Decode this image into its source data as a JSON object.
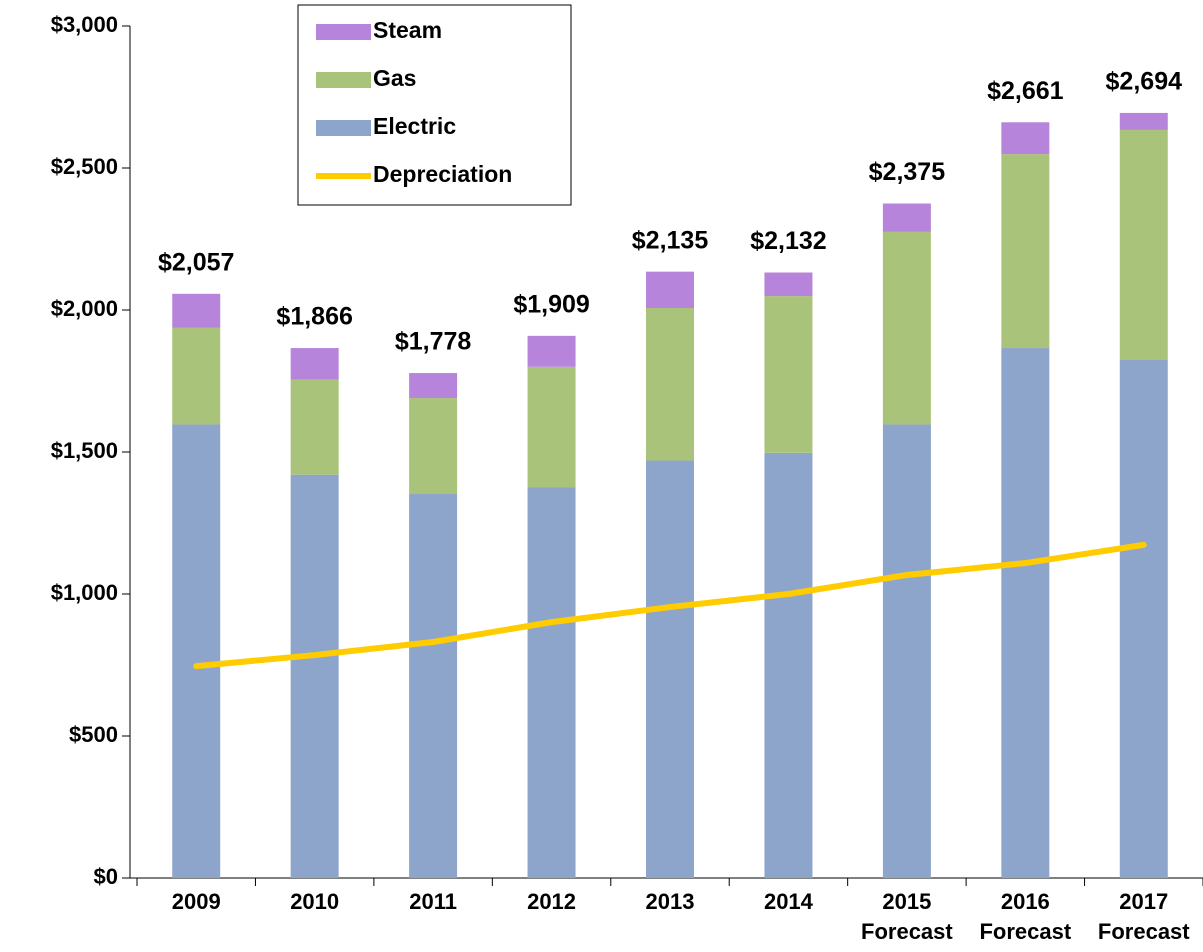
{
  "chart_data": {
    "type": "stacked-bar-line",
    "categories": [
      "2009",
      "2010",
      "2011",
      "2012",
      "2013",
      "2014",
      "2015",
      "2016",
      "2017"
    ],
    "category_sublabels": [
      null,
      null,
      null,
      null,
      null,
      null,
      "Forecast",
      "Forecast",
      "Forecast"
    ],
    "series": [
      {
        "name": "Electric",
        "color": "#8ea5cb",
        "kind": "bar",
        "values": [
          1597,
          1420,
          1352,
          1375,
          1470,
          1497,
          1597,
          1866,
          1824
        ]
      },
      {
        "name": "Gas",
        "color": "#aac37a",
        "kind": "bar",
        "values": [
          340,
          335,
          338,
          425,
          537,
          552,
          678,
          683,
          810
        ]
      },
      {
        "name": "Steam",
        "color": "#b784db",
        "kind": "bar",
        "values": [
          120,
          111,
          88,
          109,
          128,
          83,
          100,
          112,
          60
        ]
      },
      {
        "name": "Depreciation",
        "color": "#ffcc00",
        "kind": "line",
        "values": [
          746,
          785,
          831,
          901,
          954,
          1000,
          1067,
          1109,
          1173
        ]
      }
    ],
    "totals": {
      "values": [
        2057,
        1866,
        1778,
        1909,
        2135,
        2132,
        2375,
        2661,
        2694
      ],
      "value_labels": [
        "$2,057",
        "$1,866",
        "$1,778",
        "$1,909",
        "$2,135",
        "$2,132",
        "$2,375",
        "$2,661",
        "$2,694"
      ]
    },
    "ylim": [
      0,
      3000
    ],
    "yticks": [
      {
        "value": 0,
        "label": "$0"
      },
      {
        "value": 500,
        "label": "$500"
      },
      {
        "value": 1000,
        "label": "$1,000"
      },
      {
        "value": 1500,
        "label": "$1,500"
      },
      {
        "value": 2000,
        "label": "$2,000"
      },
      {
        "value": 2500,
        "label": "$2,500"
      },
      {
        "value": 3000,
        "label": "$3,000"
      }
    ],
    "legend_position": "top-left",
    "legend_order": [
      2,
      1,
      0,
      3
    ]
  }
}
